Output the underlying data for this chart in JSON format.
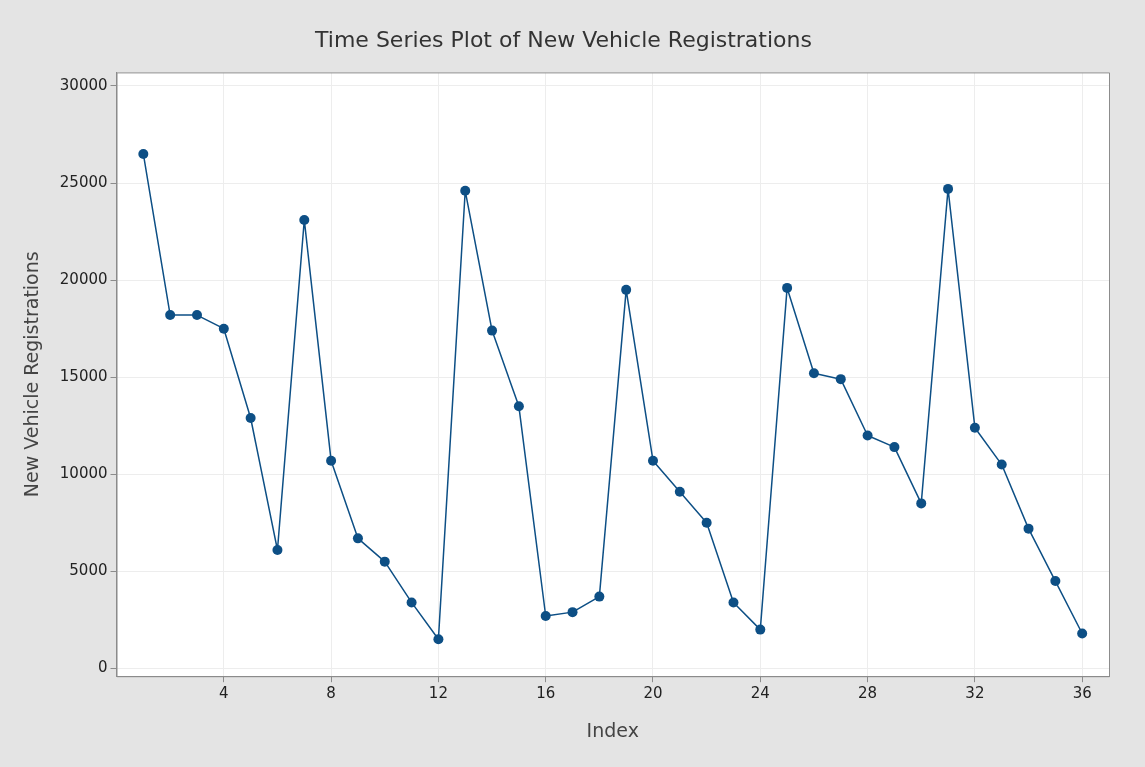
{
  "chart_data": {
    "type": "line",
    "title": "Time Series Plot of New Vehicle Registrations",
    "xlabel": "Index",
    "ylabel": "New Vehicle Registrations",
    "x": [
      1,
      2,
      3,
      4,
      5,
      6,
      7,
      8,
      9,
      10,
      11,
      12,
      13,
      14,
      15,
      16,
      17,
      18,
      19,
      20,
      21,
      22,
      23,
      24,
      25,
      26,
      27,
      28,
      29,
      30,
      31,
      32,
      33,
      34,
      35,
      36
    ],
    "series": [
      {
        "color": "#0d4f85",
        "values": [
          26500,
          18200,
          18200,
          17500,
          12900,
          6100,
          23100,
          10700,
          6700,
          5500,
          3400,
          1500,
          24600,
          17400,
          13500,
          2700,
          2900,
          3700,
          19500,
          10700,
          9100,
          7500,
          3400,
          2000,
          19600,
          15200,
          14900,
          12000,
          11400,
          8500,
          24700,
          12400,
          10500,
          7200,
          4500,
          1800
        ]
      }
    ],
    "xlim": [
      0,
      37
    ],
    "xticks": [
      4,
      8,
      12,
      16,
      20,
      24,
      28,
      32,
      36
    ],
    "ylim": [
      -400,
      30700
    ],
    "yticks": [
      0,
      5000,
      10000,
      15000,
      20000,
      25000,
      30000
    ],
    "grid": true,
    "legend": false,
    "marker": "circle",
    "line_style": "solid"
  }
}
